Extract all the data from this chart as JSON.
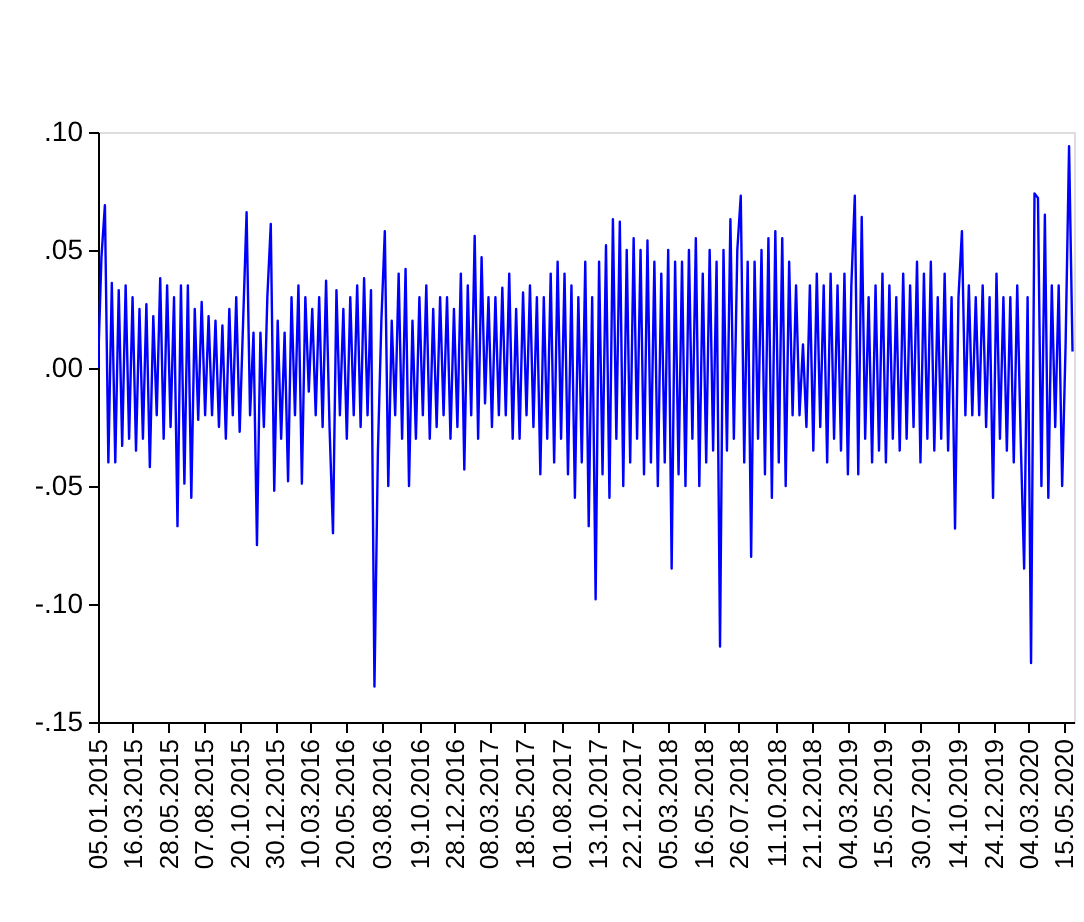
{
  "chart_data": {
    "type": "line",
    "x": [
      "2015-01-05",
      "2015-01-12",
      "2015-01-19",
      "2015-01-26",
      "2015-02-02",
      "2015-02-09",
      "2015-02-16",
      "2015-02-23",
      "2015-03-02",
      "2015-03-09",
      "2015-03-16",
      "2015-03-23",
      "2015-03-30",
      "2015-04-06",
      "2015-04-13",
      "2015-04-20",
      "2015-04-27",
      "2015-05-04",
      "2015-05-11",
      "2015-05-18",
      "2015-05-25",
      "2015-06-01",
      "2015-06-08",
      "2015-06-15",
      "2015-06-22",
      "2015-06-29",
      "2015-07-06",
      "2015-07-13",
      "2015-07-20",
      "2015-07-27",
      "2015-08-03",
      "2015-08-10",
      "2015-08-17",
      "2015-08-24",
      "2015-08-31",
      "2015-09-07",
      "2015-09-14",
      "2015-09-21",
      "2015-09-28",
      "2015-10-05",
      "2015-10-12",
      "2015-10-19",
      "2015-10-26",
      "2015-11-02",
      "2015-11-09",
      "2015-11-16",
      "2015-11-23",
      "2015-11-30",
      "2015-12-07",
      "2015-12-14",
      "2015-12-21",
      "2015-12-28",
      "2016-01-04",
      "2016-01-11",
      "2016-01-18",
      "2016-01-25",
      "2016-02-01",
      "2016-02-08",
      "2016-02-15",
      "2016-02-22",
      "2016-02-29",
      "2016-03-07",
      "2016-03-14",
      "2016-03-21",
      "2016-03-28",
      "2016-04-04",
      "2016-04-11",
      "2016-04-18",
      "2016-04-25",
      "2016-05-02",
      "2016-05-09",
      "2016-05-16",
      "2016-05-23",
      "2016-05-30",
      "2016-06-06",
      "2016-06-13",
      "2016-06-20",
      "2016-06-27",
      "2016-07-04",
      "2016-07-11",
      "2016-07-18",
      "2016-07-25",
      "2016-08-01",
      "2016-08-08",
      "2016-08-15",
      "2016-08-22",
      "2016-08-29",
      "2016-09-05",
      "2016-09-12",
      "2016-09-19",
      "2016-09-26",
      "2016-10-03",
      "2016-10-10",
      "2016-10-17",
      "2016-10-24",
      "2016-10-31",
      "2016-11-07",
      "2016-11-14",
      "2016-11-21",
      "2016-11-28",
      "2016-12-05",
      "2016-12-12",
      "2016-12-19",
      "2016-12-26",
      "2017-01-02",
      "2017-01-09",
      "2017-01-16",
      "2017-01-23",
      "2017-01-30",
      "2017-02-06",
      "2017-02-13",
      "2017-02-20",
      "2017-02-27",
      "2017-03-06",
      "2017-03-13",
      "2017-03-20",
      "2017-03-27",
      "2017-04-03",
      "2017-04-10",
      "2017-04-17",
      "2017-04-24",
      "2017-05-01",
      "2017-05-08",
      "2017-05-15",
      "2017-05-22",
      "2017-05-29",
      "2017-06-05",
      "2017-06-12",
      "2017-06-19",
      "2017-06-26",
      "2017-07-03",
      "2017-07-10",
      "2017-07-17",
      "2017-07-24",
      "2017-07-31",
      "2017-08-07",
      "2017-08-14",
      "2017-08-21",
      "2017-08-28",
      "2017-09-04",
      "2017-09-11",
      "2017-09-18",
      "2017-09-25",
      "2017-10-02",
      "2017-10-09",
      "2017-10-16",
      "2017-10-23",
      "2017-10-30",
      "2017-11-06",
      "2017-11-13",
      "2017-11-20",
      "2017-11-27",
      "2017-12-04",
      "2017-12-11",
      "2017-12-18",
      "2017-12-25",
      "2018-01-01",
      "2018-01-08",
      "2018-01-15",
      "2018-01-22",
      "2018-01-29",
      "2018-02-05",
      "2018-02-12",
      "2018-02-19",
      "2018-02-26",
      "2018-03-05",
      "2018-03-12",
      "2018-03-19",
      "2018-03-26",
      "2018-04-02",
      "2018-04-09",
      "2018-04-16",
      "2018-04-23",
      "2018-04-30",
      "2018-05-07",
      "2018-05-14",
      "2018-05-21",
      "2018-05-28",
      "2018-06-04",
      "2018-06-11",
      "2018-06-18",
      "2018-06-25",
      "2018-07-02",
      "2018-07-09",
      "2018-07-16",
      "2018-07-23",
      "2018-07-30",
      "2018-08-06",
      "2018-08-13",
      "2018-08-20",
      "2018-08-27",
      "2018-09-03",
      "2018-09-10",
      "2018-09-17",
      "2018-09-24",
      "2018-10-01",
      "2018-10-08",
      "2018-10-15",
      "2018-10-22",
      "2018-10-29",
      "2018-11-05",
      "2018-11-12",
      "2018-11-19",
      "2018-11-26",
      "2018-12-03",
      "2018-12-10",
      "2018-12-17",
      "2018-12-24",
      "2018-12-31",
      "2019-01-07",
      "2019-01-14",
      "2019-01-21",
      "2019-01-28",
      "2019-02-04",
      "2019-02-11",
      "2019-02-18",
      "2019-02-25",
      "2019-03-04",
      "2019-03-11",
      "2019-03-18",
      "2019-03-25",
      "2019-04-01",
      "2019-04-08",
      "2019-04-15",
      "2019-04-22",
      "2019-04-29",
      "2019-05-06",
      "2019-05-13",
      "2019-05-20",
      "2019-05-27",
      "2019-06-03",
      "2019-06-10",
      "2019-06-17",
      "2019-06-24",
      "2019-07-01",
      "2019-07-08",
      "2019-07-15",
      "2019-07-22",
      "2019-07-29",
      "2019-08-05",
      "2019-08-12",
      "2019-08-19",
      "2019-08-26",
      "2019-09-02",
      "2019-09-09",
      "2019-09-16",
      "2019-09-23",
      "2019-09-30",
      "2019-10-07",
      "2019-10-14",
      "2019-10-21",
      "2019-10-28",
      "2019-11-04",
      "2019-11-11",
      "2019-11-18",
      "2019-11-25",
      "2019-12-02",
      "2019-12-09",
      "2019-12-16",
      "2019-12-23",
      "2019-12-30",
      "2020-01-06",
      "2020-01-13",
      "2020-01-20",
      "2020-01-27",
      "2020-02-03",
      "2020-02-10",
      "2020-02-17",
      "2020-02-24",
      "2020-03-02",
      "2020-03-09",
      "2020-03-16",
      "2020-03-23",
      "2020-03-30",
      "2020-04-06",
      "2020-04-13",
      "2020-04-20",
      "2020-04-27",
      "2020-05-04",
      "2020-05-11",
      "2020-05-18",
      "2020-05-25",
      "2020-06-01"
    ],
    "series": [
      {
        "color": "#0000ff",
        "values": [
          0.0,
          0.047,
          0.069,
          -0.04,
          0.036,
          -0.04,
          0.033,
          -0.033,
          0.035,
          -0.03,
          0.03,
          -0.035,
          0.025,
          -0.03,
          0.027,
          -0.042,
          0.022,
          -0.02,
          0.038,
          -0.03,
          0.035,
          -0.025,
          0.03,
          -0.067,
          0.035,
          -0.049,
          0.035,
          -0.055,
          0.025,
          -0.022,
          0.028,
          -0.02,
          0.022,
          -0.02,
          0.02,
          -0.025,
          0.018,
          -0.03,
          0.025,
          -0.02,
          0.03,
          -0.027,
          0.02,
          0.066,
          -0.02,
          0.015,
          -0.075,
          0.015,
          -0.025,
          0.03,
          0.061,
          -0.052,
          0.02,
          -0.03,
          0.015,
          -0.048,
          0.03,
          -0.02,
          0.035,
          -0.049,
          0.03,
          -0.01,
          0.025,
          -0.02,
          0.03,
          -0.025,
          0.037,
          -0.025,
          -0.07,
          0.033,
          -0.02,
          0.025,
          -0.03,
          0.03,
          -0.02,
          0.035,
          -0.025,
          0.038,
          -0.02,
          0.033,
          -0.135,
          -0.035,
          0.02,
          0.058,
          -0.05,
          0.02,
          -0.02,
          0.04,
          -0.03,
          0.042,
          -0.05,
          0.02,
          -0.03,
          0.03,
          -0.02,
          0.035,
          -0.03,
          0.025,
          -0.025,
          0.03,
          -0.02,
          0.03,
          -0.03,
          0.025,
          -0.025,
          0.04,
          -0.043,
          0.035,
          -0.02,
          0.056,
          -0.03,
          0.047,
          -0.015,
          0.03,
          -0.025,
          0.03,
          -0.02,
          0.034,
          -0.02,
          0.04,
          -0.03,
          0.025,
          -0.03,
          0.032,
          -0.02,
          0.035,
          -0.025,
          0.03,
          -0.045,
          0.03,
          -0.03,
          0.04,
          -0.04,
          0.045,
          -0.03,
          0.04,
          -0.045,
          0.035,
          -0.055,
          0.03,
          -0.04,
          0.045,
          -0.067,
          0.03,
          -0.098,
          0.045,
          -0.045,
          0.052,
          -0.055,
          0.063,
          -0.03,
          0.062,
          -0.05,
          0.05,
          -0.04,
          0.055,
          -0.03,
          0.05,
          -0.045,
          0.054,
          -0.04,
          0.045,
          -0.05,
          0.04,
          -0.04,
          0.05,
          -0.085,
          0.045,
          -0.045,
          0.045,
          -0.05,
          0.05,
          -0.03,
          0.055,
          -0.05,
          0.04,
          -0.04,
          0.05,
          -0.035,
          0.045,
          -0.118,
          0.05,
          -0.035,
          0.063,
          -0.03,
          0.05,
          0.073,
          -0.04,
          0.045,
          -0.08,
          0.045,
          -0.03,
          0.05,
          -0.045,
          0.055,
          -0.055,
          0.058,
          -0.04,
          0.055,
          -0.05,
          0.045,
          -0.02,
          0.035,
          -0.02,
          0.01,
          -0.025,
          0.035,
          -0.035,
          0.04,
          -0.025,
          0.035,
          -0.04,
          0.04,
          -0.03,
          0.035,
          -0.035,
          0.04,
          -0.045,
          0.035,
          0.073,
          -0.045,
          0.064,
          -0.03,
          0.03,
          -0.04,
          0.035,
          -0.035,
          0.04,
          -0.04,
          0.035,
          -0.03,
          0.03,
          -0.035,
          0.04,
          -0.03,
          0.035,
          -0.025,
          0.045,
          -0.04,
          0.04,
          -0.03,
          0.045,
          -0.035,
          0.03,
          -0.03,
          0.04,
          -0.035,
          0.03,
          -0.068,
          0.03,
          0.058,
          -0.02,
          0.035,
          -0.02,
          0.03,
          -0.02,
          0.035,
          -0.025,
          0.03,
          -0.055,
          0.04,
          -0.03,
          0.03,
          -0.035,
          0.03,
          -0.04,
          0.035,
          -0.03,
          -0.085,
          0.03,
          -0.125,
          0.074,
          0.072,
          -0.05,
          0.065,
          -0.055,
          0.035,
          -0.025,
          0.035,
          -0.05,
          0.01,
          0.094,
          0.007
        ]
      }
    ],
    "xlim": [
      "2015-01-05",
      "2020-06-04"
    ],
    "xticks": [
      {
        "value": "2015-01-05",
        "label": "05.01.2015"
      },
      {
        "value": "2015-03-16",
        "label": "16.03.2015"
      },
      {
        "value": "2015-05-28",
        "label": "28.05.2015"
      },
      {
        "value": "2015-08-07",
        "label": "07.08.2015"
      },
      {
        "value": "2015-10-20",
        "label": "20.10.2015"
      },
      {
        "value": "2015-12-30",
        "label": "30.12.2015"
      },
      {
        "value": "2016-03-10",
        "label": "10.03.2016"
      },
      {
        "value": "2016-05-20",
        "label": "20.05.2016"
      },
      {
        "value": "2016-08-03",
        "label": "03.08.2016"
      },
      {
        "value": "2016-10-19",
        "label": "19.10.2016"
      },
      {
        "value": "2016-12-28",
        "label": "28.12.2016"
      },
      {
        "value": "2017-03-08",
        "label": "08.03.2017"
      },
      {
        "value": "2017-05-18",
        "label": "18.05.2017"
      },
      {
        "value": "2017-08-01",
        "label": "01.08.2017"
      },
      {
        "value": "2017-10-13",
        "label": "13.10.2017"
      },
      {
        "value": "2017-12-22",
        "label": "22.12.2017"
      },
      {
        "value": "2018-03-05",
        "label": "05.03.2018"
      },
      {
        "value": "2018-05-16",
        "label": "16.05.2018"
      },
      {
        "value": "2018-07-26",
        "label": "26.07.2018"
      },
      {
        "value": "2018-10-11",
        "label": "11.10.2018"
      },
      {
        "value": "2018-12-21",
        "label": "21.12.2018"
      },
      {
        "value": "2019-03-04",
        "label": "04.03.2019"
      },
      {
        "value": "2019-05-15",
        "label": "15.05.2019"
      },
      {
        "value": "2019-07-30",
        "label": "30.07.2019"
      },
      {
        "value": "2019-10-14",
        "label": "14.10.2019"
      },
      {
        "value": "2019-12-24",
        "label": "24.12.2019"
      },
      {
        "value": "2020-03-04",
        "label": "04.03.2020"
      },
      {
        "value": "2020-05-15",
        "label": "15.05.2020"
      }
    ],
    "ylim": [
      -0.15,
      0.1
    ],
    "yticks": [
      {
        "value": -0.15,
        "label": "-.15"
      },
      {
        "value": -0.1,
        "label": "-.10"
      },
      {
        "value": -0.05,
        "label": "-.05"
      },
      {
        "value": 0,
        "label": ".00"
      },
      {
        "value": 0.05,
        "label": ".05"
      },
      {
        "value": 0.1,
        "label": ".10"
      }
    ],
    "grid": false,
    "line_style": "solid",
    "marker": "none"
  }
}
